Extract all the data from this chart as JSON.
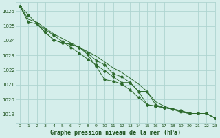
{
  "background_color": "#d5eeeb",
  "grid_color": "#aed4d0",
  "line_color": "#2d6a2d",
  "marker_color": "#2d6a2d",
  "title": "Graphe pression niveau de la mer (hPa)",
  "title_color": "#1a4f1a",
  "xlim": [
    -0.5,
    23
  ],
  "ylim": [
    1018.4,
    1026.6
  ],
  "xticks": [
    0,
    1,
    2,
    3,
    4,
    5,
    6,
    7,
    8,
    9,
    10,
    11,
    12,
    13,
    14,
    15,
    16,
    17,
    18,
    19,
    20,
    21,
    22,
    23
  ],
  "yticks": [
    1019,
    1020,
    1021,
    1022,
    1023,
    1024,
    1025,
    1026
  ],
  "series": [
    [
      1026.35,
      1025.75,
      1025.15,
      1024.75,
      1024.35,
      1023.95,
      1023.55,
      1023.15,
      1022.75,
      1022.35,
      1021.95,
      1021.55,
      1021.15,
      1021.15,
      1020.55,
      1020.55,
      1019.65,
      1019.45,
      1019.35,
      1019.15,
      1019.05,
      1019.05,
      1019.05,
      1018.75
    ],
    [
      1026.35,
      1025.25,
      1025.15,
      1024.55,
      1024.05,
      1023.85,
      1023.75,
      1023.55,
      1023.05,
      1022.25,
      1021.35,
      1021.25,
      1021.05,
      1020.65,
      1020.15,
      1019.65,
      1019.55,
      1019.45,
      1019.35,
      1019.25,
      1019.05,
      1019.05,
      1019.05,
      1018.75
    ],
    [
      1026.35,
      1025.25,
      1025.15,
      1024.55,
      1024.05,
      1023.85,
      1023.75,
      1023.55,
      1023.15,
      1022.65,
      1022.35,
      1021.75,
      1021.55,
      1021.15,
      1020.55,
      1019.65,
      1019.55,
      1019.45,
      1019.35,
      1019.25,
      1019.05,
      1019.05,
      1019.05,
      1018.75
    ]
  ],
  "series_no_markers": [
    [
      1026.35,
      1025.45,
      1025.25,
      1024.85,
      1024.45,
      1024.15,
      1023.85,
      1023.55,
      1023.25,
      1022.95,
      1022.55,
      1022.15,
      1021.85,
      1021.45,
      1021.05,
      1020.55,
      1019.85,
      1019.55,
      1019.35,
      1019.15,
      1019.05,
      1019.05,
      1019.05,
      1018.75
    ]
  ]
}
